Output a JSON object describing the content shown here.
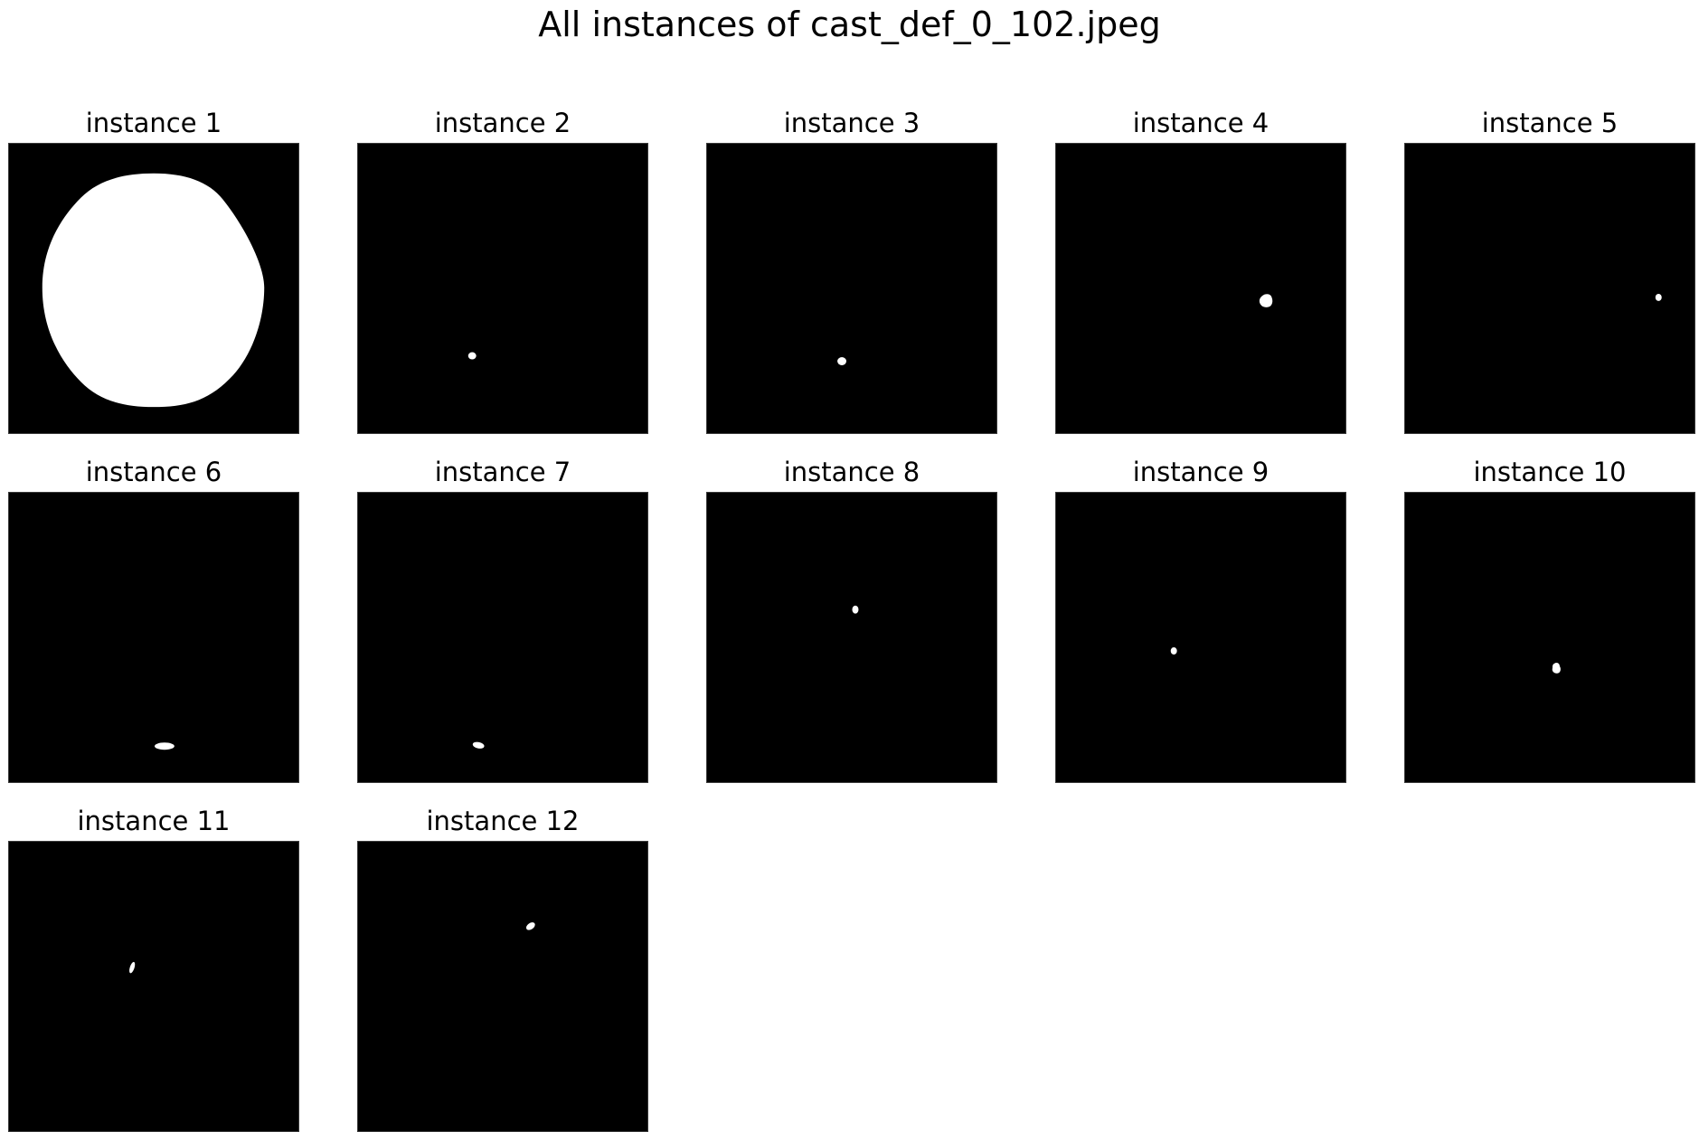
{
  "figure": {
    "title": "All instances of cast_def_0_102.jpeg"
  },
  "colors": {
    "background": "#000000",
    "mask": "#ffffff"
  },
  "instances": [
    {
      "title": "instance 1"
    },
    {
      "title": "instance 2"
    },
    {
      "title": "instance 3"
    },
    {
      "title": "instance 4"
    },
    {
      "title": "instance 5"
    },
    {
      "title": "instance 6"
    },
    {
      "title": "instance 7"
    },
    {
      "title": "instance 8"
    },
    {
      "title": "instance 9"
    },
    {
      "title": "instance 10"
    },
    {
      "title": "instance 11"
    },
    {
      "title": "instance 12"
    }
  ]
}
